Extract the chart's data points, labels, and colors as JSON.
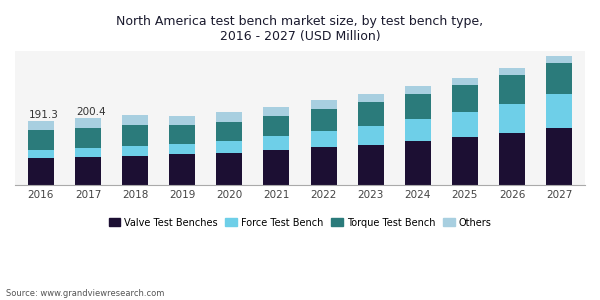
{
  "title": "North America test bench market size, by test bench type,\n2016 - 2027 (USD Million)",
  "years": [
    2016,
    2017,
    2018,
    2019,
    2020,
    2021,
    2022,
    2023,
    2024,
    2025,
    2026,
    2027
  ],
  "segments": {
    "Valve Test Benches": [
      80,
      84,
      87,
      91,
      96,
      104,
      112,
      120,
      130,
      142,
      155,
      170
    ],
    "Force Test Bench": [
      25,
      27,
      29,
      32,
      36,
      42,
      50,
      57,
      66,
      76,
      88,
      102
    ],
    "Torque Test Bench": [
      58,
      60,
      62,
      55,
      57,
      60,
      65,
      70,
      75,
      80,
      85,
      92
    ],
    "Others": [
      28,
      29,
      30,
      29,
      28,
      27,
      26,
      25,
      24,
      22,
      22,
      21
    ]
  },
  "colors": {
    "Valve Test Benches": "#1c0f33",
    "Force Test Bench": "#6ecfe8",
    "Torque Test Bench": "#2b7b7b",
    "Others": "#a8cfe0"
  },
  "segment_order": [
    "Valve Test Benches",
    "Force Test Bench",
    "Torque Test Bench",
    "Others"
  ],
  "annotations": [
    {
      "year_idx": 0,
      "text": "191.3"
    },
    {
      "year_idx": 1,
      "text": "200.4"
    }
  ],
  "source": "Source: www.grandviewresearch.com",
  "ylim": [
    0,
    400
  ],
  "figsize": [
    6.0,
    3.0
  ],
  "dpi": 100,
  "bg_color": "#f5f5f5",
  "bar_width": 0.55
}
